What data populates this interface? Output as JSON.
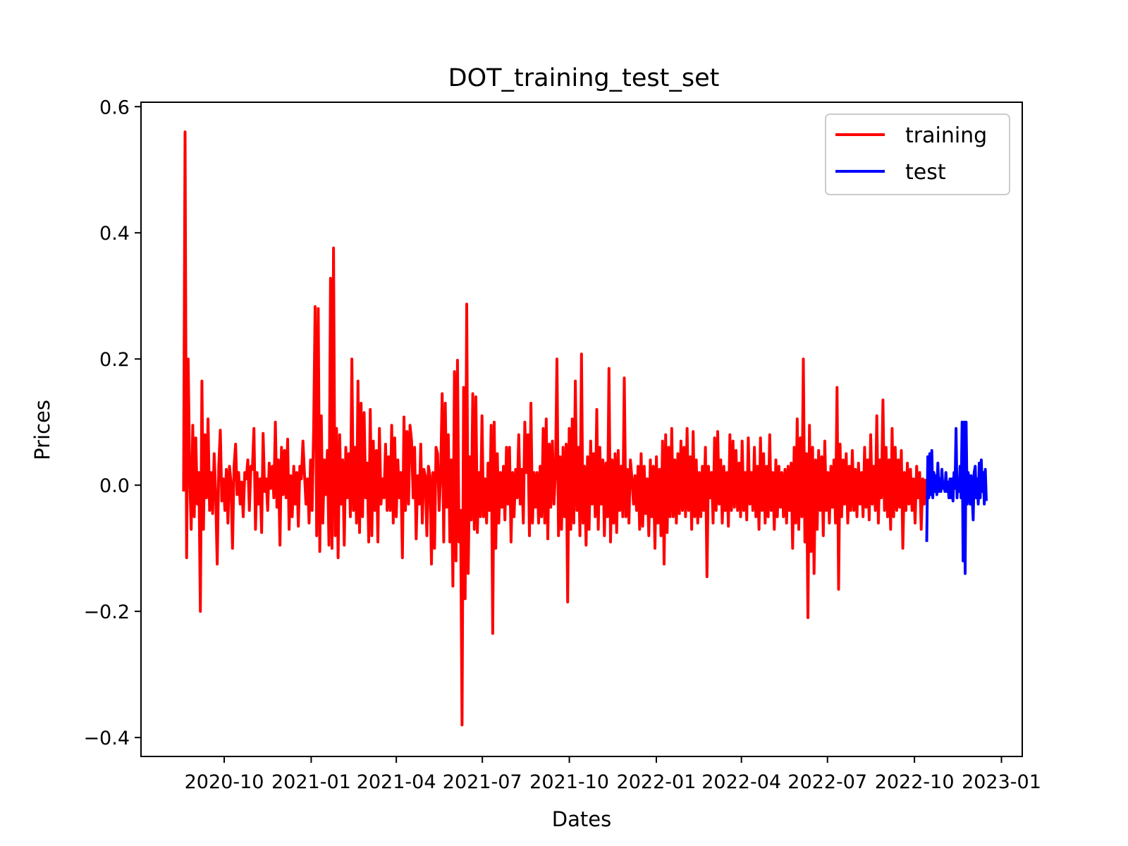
{
  "chart_data": {
    "type": "line",
    "title": "DOT_training_test_set",
    "xlabel": "Dates",
    "ylabel": "Prices",
    "xlim": [
      "2020-07-05",
      "2023-01-23"
    ],
    "ylim": [
      -0.43,
      0.607
    ],
    "grid": false,
    "legend_position": "top-right",
    "x_ticks": [
      "2020-10",
      "2021-01",
      "2021-04",
      "2021-07",
      "2021-10",
      "2022-01",
      "2022-04",
      "2022-07",
      "2022-10",
      "2023-01"
    ],
    "y_ticks": [
      "0.6",
      "0.4",
      "0.2",
      "0.0",
      "−0.2",
      "−0.4"
    ],
    "colors": {
      "training": "#ff0000",
      "test": "#0000ff"
    },
    "series": [
      {
        "name": "training",
        "start": "2020-08-19",
        "end": "2022-10-13",
        "values": [
          -0.01,
          0.56,
          -0.115,
          0.2,
          0.02,
          -0.07,
          0.095,
          -0.05,
          0.075,
          -0.03,
          0.02,
          -0.2,
          0.165,
          -0.07,
          0.08,
          -0.02,
          0.105,
          -0.04,
          0.02,
          -0.045,
          0.05,
          -0.015,
          -0.125,
          0.03,
          0.087,
          -0.025,
          0.01,
          -0.04,
          0.025,
          -0.06,
          0.03,
          0.005,
          -0.1,
          0.03,
          0.065,
          -0.015,
          0.02,
          -0.03,
          0.005,
          -0.05,
          0.02,
          0.01,
          0.04,
          -0.04,
          0.03,
          0.025,
          0.09,
          -0.07,
          0.02,
          -0.03,
          0.01,
          -0.075,
          0.082,
          -0.01,
          0.01,
          -0.04,
          0.035,
          -0.005,
          0.03,
          -0.02,
          0.1,
          -0.035,
          0.04,
          -0.095,
          0.06,
          -0.015,
          0.055,
          -0.02,
          0.073,
          -0.07,
          0.015,
          -0.05,
          0.03,
          -0.03,
          0.02,
          -0.065,
          0.03,
          0.01,
          0.07,
          0.02,
          -0.03,
          0.01,
          -0.06,
          0.04,
          -0.04,
          0.09,
          0.283,
          -0.08,
          0.28,
          -0.105,
          0.11,
          -0.06,
          0.04,
          -0.015,
          0.055,
          -0.095,
          0.328,
          -0.1,
          0.376,
          -0.08,
          0.09,
          -0.115,
          0.08,
          -0.03,
          0.04,
          -0.095,
          0.06,
          -0.02,
          0.05,
          -0.05,
          0.2,
          -0.04,
          0.06,
          -0.06,
          0.165,
          -0.075,
          0.13,
          -0.05,
          0.115,
          -0.02,
          0.035,
          -0.09,
          0.12,
          -0.08,
          0.07,
          -0.04,
          0.055,
          -0.09,
          0.09,
          -0.03,
          0.01,
          -0.02,
          0.065,
          -0.04,
          0.045,
          -0.04,
          0.095,
          -0.06,
          0.075,
          -0.05,
          0.04,
          -0.02,
          0.02,
          -0.115,
          0.108,
          -0.04,
          0.085,
          -0.03,
          0.095,
          0.07,
          -0.02,
          0.06,
          -0.085,
          0.015,
          -0.03,
          0.065,
          -0.06,
          0.025,
          0.015,
          -0.08,
          0.03,
          0.015,
          -0.125,
          0.02,
          -0.1,
          0.06,
          0.05,
          -0.04,
          0.02,
          0.145,
          -0.09,
          0.13,
          -0.035,
          0.08,
          -0.09,
          0.04,
          -0.16,
          0.18,
          -0.12,
          0.198,
          -0.09,
          -0.04,
          -0.38,
          0.155,
          -0.18,
          0.287,
          -0.14,
          0.045,
          -0.055,
          0.145,
          -0.07,
          0.14,
          -0.075,
          0.02,
          -0.05,
          0.11,
          -0.05,
          0.01,
          -0.06,
          0.035,
          -0.04,
          0.095,
          -0.235,
          0.1,
          -0.1,
          0.05,
          -0.06,
          0.02,
          -0.035,
          0.03,
          -0.055,
          0.06,
          -0.03,
          0.06,
          -0.09,
          0.02,
          -0.05,
          0.025,
          -0.02,
          0.08,
          -0.03,
          0.025,
          -0.06,
          0.1,
          0.02,
          0.08,
          -0.08,
          0.13,
          -0.06,
          0.02,
          -0.035,
          0.02,
          -0.06,
          0.03,
          -0.05,
          0.09,
          -0.06,
          0.105,
          -0.085,
          0.065,
          -0.035,
          0.07,
          -0.03,
          0.02,
          0.2,
          -0.08,
          0.045,
          -0.07,
          0.06,
          -0.05,
          0.065,
          -0.185,
          0.09,
          -0.07,
          0.105,
          -0.06,
          0.165,
          -0.04,
          0.06,
          -0.08,
          0.208,
          -0.06,
          0.03,
          -0.095,
          0.045,
          -0.07,
          0.07,
          -0.03,
          0.05,
          -0.05,
          0.12,
          -0.07,
          0.06,
          -0.03,
          0.04,
          -0.08,
          0.035,
          -0.05,
          0.185,
          -0.09,
          0.04,
          -0.06,
          0.05,
          -0.075,
          0.055,
          -0.04,
          0.03,
          -0.05,
          0.17,
          -0.05,
          0.025,
          -0.06,
          0.04,
          0.01,
          -0.03,
          0.015,
          -0.04,
          0.03,
          -0.07,
          0.05,
          -0.065,
          0.03,
          -0.045,
          0.01,
          -0.08,
          0.04,
          -0.05,
          0.03,
          -0.1,
          0.045,
          -0.06,
          0.025,
          -0.08,
          0.07,
          -0.125,
          0.08,
          -0.075,
          0.06,
          -0.05,
          0.09,
          -0.05,
          0.04,
          -0.06,
          0.05,
          -0.045,
          0.07,
          -0.04,
          0.06,
          -0.05,
          0.09,
          -0.04,
          0.045,
          -0.07,
          0.085,
          -0.05,
          0.04,
          -0.06,
          0.02,
          -0.05,
          0.03,
          -0.04,
          0.06,
          -0.145,
          0.03,
          -0.02,
          0.02,
          -0.06,
          0.075,
          -0.04,
          0.085,
          -0.03,
          0.04,
          -0.06,
          0.03,
          -0.04,
          0.02,
          -0.065,
          0.08,
          -0.04,
          0.07,
          -0.035,
          0.055,
          -0.04,
          0.035,
          -0.05,
          0.07,
          -0.04,
          0.02,
          -0.055,
          0.075,
          -0.03,
          0.02,
          -0.04,
          0.06,
          -0.05,
          0.03,
          -0.07,
          0.075,
          -0.04,
          0.05,
          -0.06,
          0.03,
          -0.05,
          0.08,
          -0.04,
          0.02,
          -0.07,
          0.04,
          -0.05,
          0.03,
          -0.035,
          0.02,
          -0.05,
          0.025,
          -0.06,
          0.03,
          -0.04,
          0.035,
          -0.1,
          0.06,
          -0.06,
          0.105,
          -0.07,
          0.075,
          -0.05,
          0.2,
          -0.09,
          0.05,
          -0.21,
          0.095,
          -0.105,
          0.06,
          -0.14,
          0.04,
          -0.07,
          0.055,
          -0.04,
          0.045,
          -0.08,
          0.07,
          -0.04,
          0.02,
          -0.06,
          0.03,
          -0.035,
          0.04,
          -0.06,
          0.155,
          -0.165,
          0.065,
          -0.05,
          0.04,
          -0.03,
          0.05,
          -0.06,
          0.03,
          -0.04,
          0.055,
          -0.04,
          0.025,
          -0.05,
          0.035,
          -0.03,
          0.02,
          -0.05,
          0.06,
          -0.035,
          0.04,
          -0.055,
          0.08,
          -0.03,
          0.03,
          -0.04,
          0.11,
          -0.06,
          0.04,
          -0.02,
          0.135,
          -0.04,
          0.06,
          -0.05,
          0.04,
          -0.07,
          0.09,
          -0.05,
          0.06,
          -0.04,
          0.04,
          -0.035,
          0.055,
          -0.1,
          0.02,
          -0.04,
          0.035,
          -0.03,
          0.025,
          -0.04,
          0.01,
          -0.06,
          0.03,
          -0.02,
          0.02,
          -0.07,
          0.01,
          -0.03,
          0.01
        ]
      },
      {
        "name": "test",
        "start": "2022-10-14",
        "end": "2022-12-16",
        "values": [
          -0.09,
          0.045,
          -0.02,
          0.05,
          -0.015,
          0.055,
          -0.02,
          0.02,
          -0.01,
          0.015,
          -0.015,
          0.035,
          -0.01,
          0.01,
          -0.01,
          0.025,
          -0.005,
          0.005,
          -0.01,
          0.02,
          -0.01,
          0.005,
          -0.02,
          0.01,
          -0.02,
          0.01,
          -0.025,
          0.02,
          -0.005,
          0.09,
          -0.02,
          0.01,
          -0.01,
          0.03,
          -0.02,
          0.1,
          -0.12,
          0.1,
          -0.14,
          0.1,
          -0.03,
          0.02,
          0.01,
          -0.03,
          0.015,
          -0.02,
          -0.055,
          0.02,
          0.03,
          -0.02,
          0.01,
          -0.03,
          0.035,
          -0.02,
          0.04,
          -0.01,
          0.02,
          -0.03,
          0.025,
          -0.025
        ]
      }
    ]
  }
}
